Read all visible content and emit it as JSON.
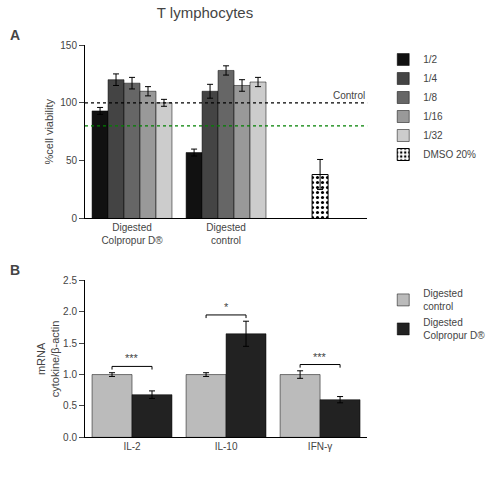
{
  "title": "T lymphocytes",
  "chart_data": [
    {
      "type": "bar",
      "title": "A",
      "ylabel": "%cell viability",
      "categories": [
        "Digested\nColpropur D®",
        "Digested\ncontrol",
        null
      ],
      "series": [
        {
          "name": "1/2",
          "color": "#111111",
          "values": [
            93,
            57,
            null
          ],
          "errors": [
            3,
            3,
            null
          ]
        },
        {
          "name": "1/4",
          "color": "#444444",
          "values": [
            120,
            110,
            null
          ],
          "errors": [
            5,
            6,
            null
          ]
        },
        {
          "name": "1/8",
          "color": "#666666",
          "values": [
            117,
            128,
            null
          ],
          "errors": [
            5,
            4,
            null
          ]
        },
        {
          "name": "1/16",
          "color": "#999999",
          "values": [
            110,
            115,
            null
          ],
          "errors": [
            4,
            5,
            null
          ]
        },
        {
          "name": "1/32",
          "color": "#cccccc",
          "values": [
            100,
            118,
            null
          ],
          "errors": [
            3,
            4,
            null
          ]
        },
        {
          "name": "DMSO 20%",
          "color": "white",
          "values": [
            null,
            null,
            38
          ],
          "errors": [
            null,
            null,
            13
          ]
        }
      ],
      "reference_lines": [
        {
          "value": 100,
          "color": "black",
          "line_style": "dotted",
          "label": "Control"
        },
        {
          "value": 80,
          "color": "green",
          "line_style": "dotted"
        }
      ],
      "ylim": [
        0,
        150
      ],
      "yticks": [
        0,
        50,
        100,
        150
      ],
      "grid": false,
      "legend": "right"
    },
    {
      "type": "bar",
      "title": "B",
      "ylabel": "mRNA\ncytokine/β-actin",
      "categories": [
        "IL-2",
        "IL-10",
        "IFN-γ"
      ],
      "series": [
        {
          "name": "Digested\ncontrol",
          "color": "#bbbbbb",
          "values": [
            1.0,
            1.0,
            1.0
          ],
          "errors": [
            0.03,
            0.03,
            0.06
          ]
        },
        {
          "name": "Digested\nColpropur D®",
          "color": "#222222",
          "values": [
            0.68,
            1.65,
            0.6
          ],
          "errors": [
            0.06,
            0.2,
            0.05
          ]
        }
      ],
      "significance": [
        "***",
        "*",
        "***"
      ],
      "ylim": [
        0,
        2.5
      ],
      "yticks": [
        {
          "value": 0.0,
          "label": "0.0"
        },
        0.5,
        {
          "value": 1.0,
          "label": "1.0"
        },
        1.5,
        {
          "value": 2.0,
          "label": "2.0"
        },
        2.5
      ],
      "grid": false,
      "legend": "right"
    }
  ]
}
